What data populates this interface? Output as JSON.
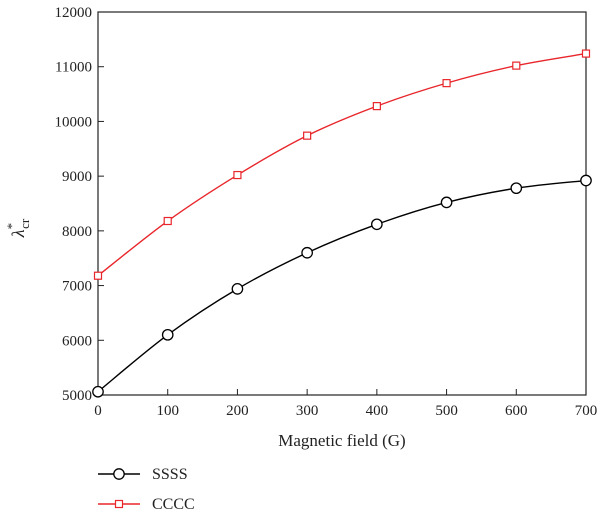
{
  "chart_data": {
    "type": "line",
    "title": "",
    "xlabel": "Magnetic field (G)",
    "ylabel_main": "λ",
    "ylabel_sup": "*",
    "ylabel_sub": "cr",
    "x": [
      0,
      100,
      200,
      300,
      400,
      500,
      600,
      700
    ],
    "xlim": [
      0,
      700
    ],
    "ylim": [
      5000,
      12000
    ],
    "xticks": [
      0,
      100,
      200,
      300,
      400,
      500,
      600,
      700
    ],
    "yticks": [
      5000,
      6000,
      7000,
      8000,
      9000,
      10000,
      11000,
      12000
    ],
    "grid": false,
    "legend_position": "below",
    "series": [
      {
        "name": "SSSS",
        "color": "#000000",
        "marker": "circle",
        "values": [
          5060,
          6100,
          6940,
          7600,
          8120,
          8520,
          8780,
          8920
        ]
      },
      {
        "name": "CCCC",
        "color": "#e8262b",
        "marker": "square",
        "values": [
          7180,
          8180,
          9020,
          9740,
          10280,
          10700,
          11020,
          11240
        ]
      }
    ]
  }
}
